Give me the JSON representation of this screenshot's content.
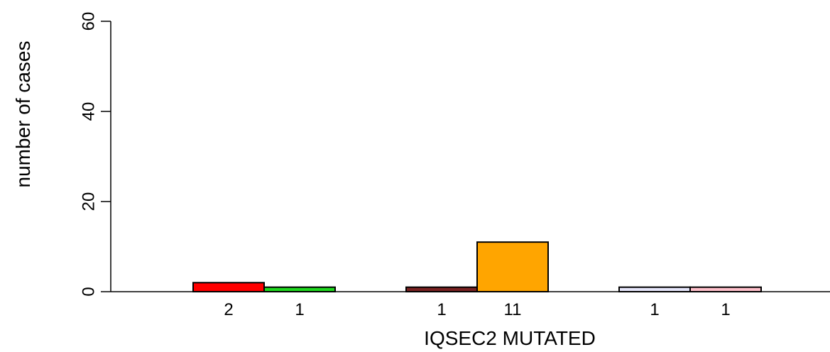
{
  "chart_data": {
    "type": "bar",
    "title": "",
    "xlabel": "IQSEC2 MUTATED",
    "ylabel": "number of cases",
    "ylim": [
      0,
      60
    ],
    "yticks": [
      0,
      20,
      40,
      60
    ],
    "grid": false,
    "groups": [
      {
        "bars": [
          {
            "value": 2,
            "label": "2",
            "color": "#ff0000"
          },
          {
            "value": 1,
            "label": "1",
            "color": "#1fd91f"
          }
        ]
      },
      {
        "bars": [
          {
            "value": 1,
            "label": "1",
            "color": "#7a2222"
          },
          {
            "value": 11,
            "label": "11",
            "color": "#ffa500"
          }
        ]
      },
      {
        "bars": [
          {
            "value": 1,
            "label": "1",
            "color": "#e6e6fa"
          },
          {
            "value": 1,
            "label": "1",
            "color": "#ffc0cb"
          }
        ]
      }
    ]
  }
}
